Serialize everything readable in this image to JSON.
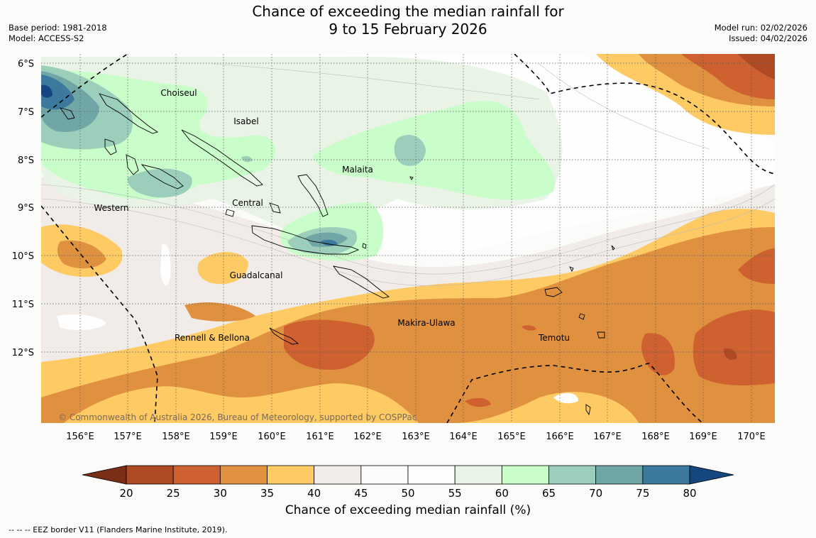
{
  "header": {
    "title_line1": "Chance of exceeding the median rainfall for",
    "title_line2": "9 to 15 February 2026",
    "base_period": "Base period: 1981-2018",
    "model": "Model: ACCESS-S2",
    "model_run": "Model run: 02/02/2026",
    "issued": "Issued: 04/02/2026"
  },
  "map": {
    "lat_labels": [
      "6°S",
      "7°S",
      "8°S",
      "9°S",
      "10°S",
      "11°S",
      "12°S"
    ],
    "lon_labels": [
      "156°E",
      "157°E",
      "158°E",
      "159°E",
      "160°E",
      "161°E",
      "162°E",
      "163°E",
      "164°E",
      "165°E",
      "166°E",
      "167°E",
      "168°E",
      "169°E",
      "170°E"
    ],
    "places": {
      "choiseul": "Choiseul",
      "isabel": "Isabel",
      "malaita": "Malaita",
      "western": "Western",
      "central": "Central",
      "guadalcanal": "Guadalcanal",
      "makira": "Makira-Ulawa",
      "rennell": "Rennell & Bellona",
      "temotu": "Temotu"
    },
    "copyright": "© Commonwealth of Australia 2026, Bureau of Meteorology, supported by COSPPac"
  },
  "colorbar": {
    "ticks": [
      "20",
      "25",
      "30",
      "35",
      "40",
      "45",
      "50",
      "55",
      "60",
      "65",
      "70",
      "75",
      "80"
    ],
    "colors": [
      "#7a2e15",
      "#b04a24",
      "#cf6030",
      "#e0913f",
      "#fdca64",
      "#f1ece8",
      "#fbfcfa",
      "#fdfefd",
      "#e9f4e7",
      "#c9fdc9",
      "#9bcfbb",
      "#70a7a6",
      "#3d789d",
      "#15467f"
    ],
    "label": "Chance of exceeding median rainfall (%)"
  },
  "footnote": "--  --  -- EEZ border V11 (Flanders Marine Institute, 2019)."
}
